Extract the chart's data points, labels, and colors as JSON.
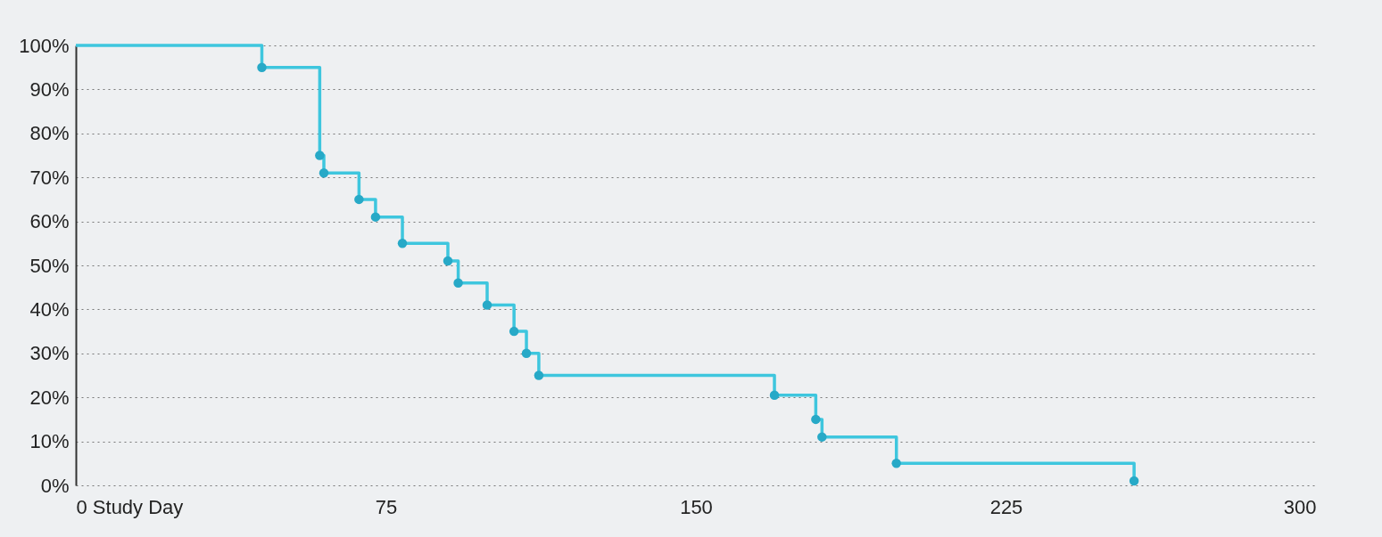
{
  "chart_data": {
    "type": "step",
    "xlim": [
      0,
      300
    ],
    "xticks": [
      {
        "value": 0,
        "label": "0 Study Day"
      },
      75,
      150,
      225,
      300
    ],
    "ylim": [
      0,
      100
    ],
    "yticks": [
      {
        "value": 0,
        "label": "0%"
      },
      {
        "value": 10,
        "label": "10%"
      },
      {
        "value": 20,
        "label": "20%"
      },
      {
        "value": 30,
        "label": "30%"
      },
      {
        "value": 40,
        "label": "40%"
      },
      {
        "value": 50,
        "label": "50%"
      },
      {
        "value": 60,
        "label": "60%"
      },
      {
        "value": 70,
        "label": "70%"
      },
      {
        "value": 80,
        "label": "80%"
      },
      {
        "value": 90,
        "label": "90%"
      },
      {
        "value": 100,
        "label": "100%"
      }
    ],
    "grid": "y",
    "line_style": "solid",
    "series": [
      {
        "color": "#3ec6de",
        "x": [
          0,
          45,
          59,
          60,
          68.5,
          72.5,
          79,
          90,
          92.5,
          99.5,
          106,
          109,
          112,
          169,
          179,
          180.5,
          198.5,
          256
        ],
        "values": [
          100,
          95,
          75,
          71,
          65,
          61,
          55,
          51,
          46,
          41,
          35,
          30,
          25,
          20.5,
          15,
          11,
          5,
          1
        ]
      },
      {
        "type": "scatter",
        "color": "#27a9c7",
        "marker": "circle",
        "x": [
          45,
          59,
          60,
          68.5,
          72.5,
          79,
          90,
          92.5,
          99.5,
          106,
          109,
          112,
          169,
          179,
          180.5,
          198.5,
          256
        ],
        "values": [
          95,
          75,
          71,
          65,
          61,
          55,
          51,
          46,
          41,
          35,
          30,
          25,
          20.5,
          15,
          11,
          5,
          1
        ]
      }
    ]
  }
}
